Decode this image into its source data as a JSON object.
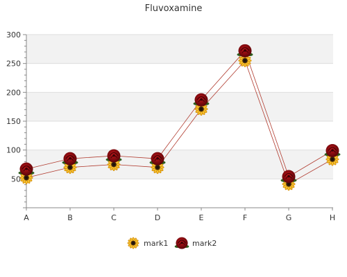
{
  "chart_data": {
    "type": "line",
    "title": "Fluvoxamine",
    "categories": [
      "A",
      "B",
      "C",
      "D",
      "E",
      "F",
      "G",
      "H"
    ],
    "series": [
      {
        "name": "mark1",
        "values": [
          52,
          70,
          75,
          70,
          171,
          255,
          41,
          84
        ],
        "color": "#b03a2e",
        "marker": "sunflower-icon"
      },
      {
        "name": "mark2",
        "values": [
          67,
          85,
          90,
          85,
          187,
          272,
          54,
          99
        ],
        "color": "#b03a2e",
        "marker": "rose-icon"
      }
    ],
    "ylim": [
      0,
      300
    ],
    "yticks": [
      50,
      100,
      150,
      200,
      250,
      300
    ],
    "grid": true,
    "legend": "bottom-center"
  }
}
